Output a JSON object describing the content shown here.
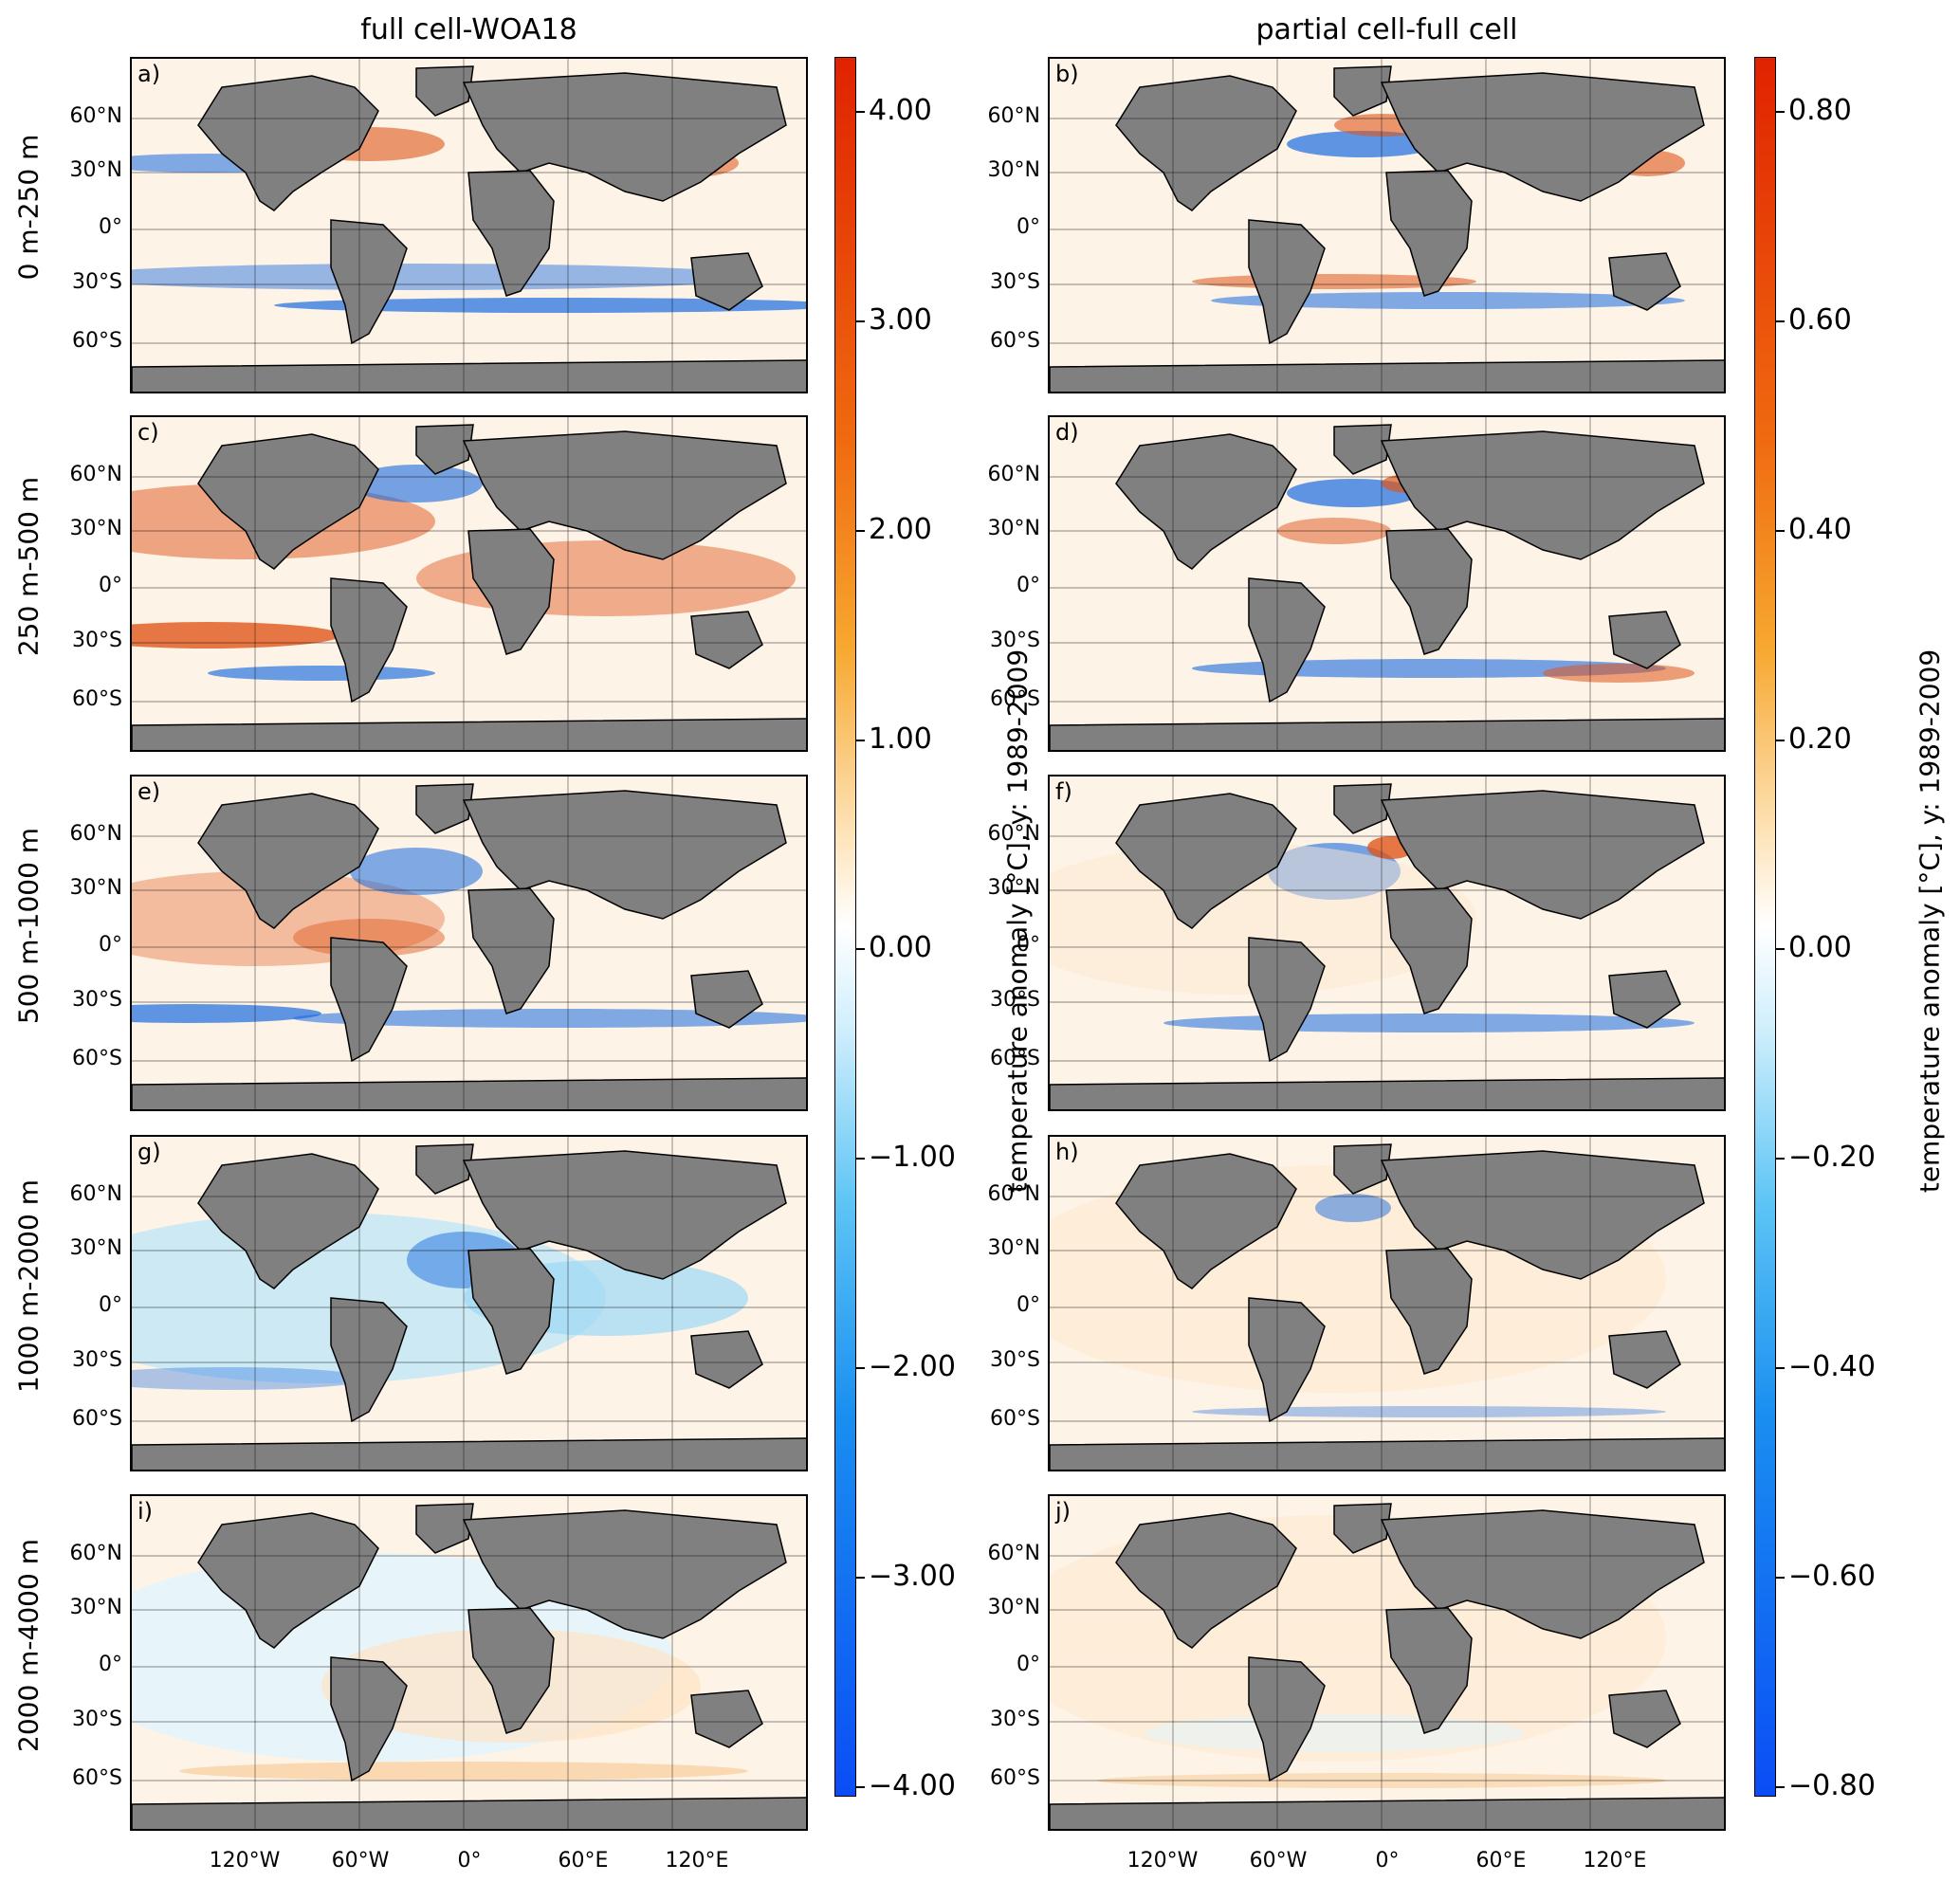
{
  "columns": [
    {
      "title": "full cell-WOA18"
    },
    {
      "title": "partial cell-full cell"
    }
  ],
  "rows": [
    {
      "label": "0 m-250 m"
    },
    {
      "label": "250 m-500 m"
    },
    {
      "label": "500 m-1000 m"
    },
    {
      "label": "1000 m-2000 m"
    },
    {
      "label": "2000 m-4000 m"
    }
  ],
  "panels": [
    "a)",
    "b)",
    "c)",
    "d)",
    "e)",
    "f)",
    "g)",
    "h)",
    "i)",
    "j)"
  ],
  "lat_labels": [
    "60°N",
    "30°N",
    "0°",
    "30°S",
    "60°S"
  ],
  "lon_labels": [
    "120°W",
    "60°W",
    "0°",
    "60°E",
    "120°E"
  ],
  "colorbars": [
    {
      "label": "temperature anomaly  [°C], y: 1989-2009",
      "ticks": [
        "4.00",
        "3.00",
        "2.00",
        "1.00",
        "0.00",
        "−1.00",
        "−2.00",
        "−3.00",
        "−4.00"
      ]
    },
    {
      "label": "temperature anomaly  [°C], y: 1989-2009",
      "ticks": [
        "0.80",
        "0.60",
        "0.40",
        "0.20",
        "0.00",
        "−0.20",
        "−0.40",
        "−0.60",
        "−0.80"
      ]
    }
  ],
  "colors": {
    "land": "#808080",
    "warm": "#e0561a",
    "cold": "#1a6be0",
    "neutral": "#fdf3e6"
  }
}
